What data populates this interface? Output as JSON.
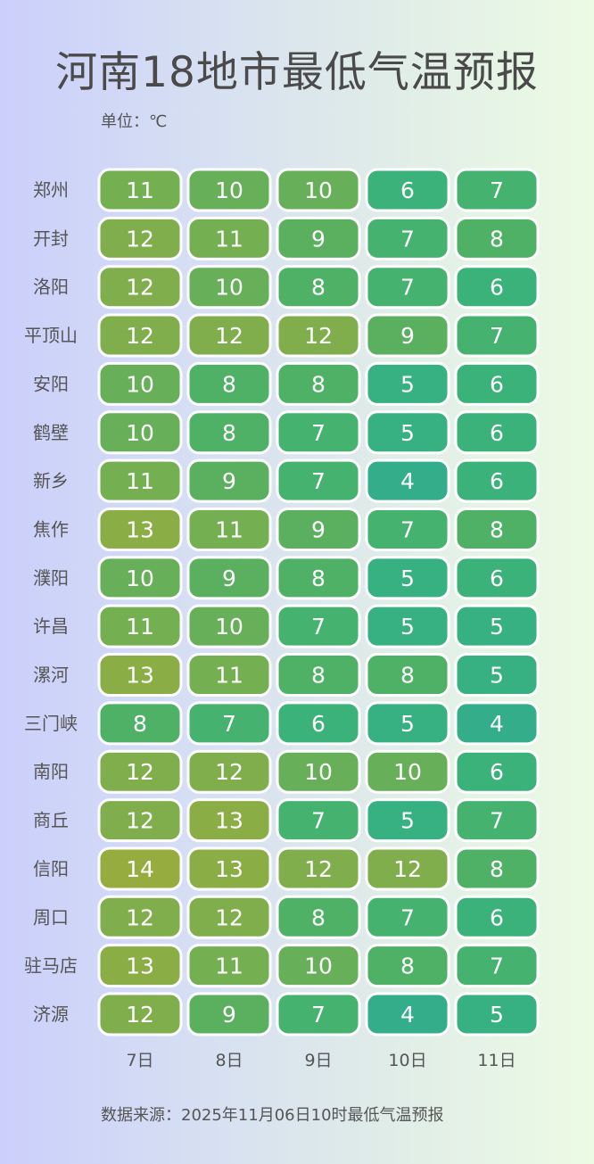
{
  "title": "河南18地市最低气温预报",
  "unit_label": "单位：℃",
  "source": "数据来源：2025年11月06日10时最低气温预报",
  "chart_data": {
    "type": "heatmap",
    "title": "河南18地市最低气温预报",
    "x_categories": [
      "7日",
      "8日",
      "9日",
      "10日",
      "11日"
    ],
    "y_categories": [
      "郑州",
      "开封",
      "洛阳",
      "平顶山",
      "安阳",
      "鹤壁",
      "新乡",
      "焦作",
      "濮阳",
      "许昌",
      "漯河",
      "三门峡",
      "南阳",
      "商丘",
      "信阳",
      "周口",
      "驻马店",
      "济源"
    ],
    "values": [
      [
        11,
        10,
        10,
        6,
        7
      ],
      [
        12,
        11,
        9,
        7,
        8
      ],
      [
        12,
        10,
        8,
        7,
        6
      ],
      [
        12,
        12,
        12,
        9,
        7
      ],
      [
        10,
        8,
        8,
        5,
        6
      ],
      [
        10,
        8,
        7,
        5,
        6
      ],
      [
        11,
        9,
        7,
        4,
        6
      ],
      [
        13,
        11,
        9,
        7,
        8
      ],
      [
        10,
        9,
        8,
        5,
        6
      ],
      [
        11,
        10,
        7,
        5,
        5
      ],
      [
        13,
        11,
        8,
        8,
        5
      ],
      [
        8,
        7,
        6,
        5,
        4
      ],
      [
        12,
        12,
        10,
        10,
        6
      ],
      [
        12,
        13,
        7,
        5,
        7
      ],
      [
        14,
        13,
        12,
        12,
        8
      ],
      [
        12,
        12,
        8,
        7,
        6
      ],
      [
        13,
        11,
        10,
        8,
        7
      ],
      [
        12,
        9,
        7,
        4,
        5
      ]
    ],
    "color_scale": {
      "min": 4,
      "max": 14,
      "colors": [
        "#33ad8a",
        "#3bb279",
        "#4fb165",
        "#67af58",
        "#80ae4c",
        "#96ac3e"
      ]
    }
  }
}
